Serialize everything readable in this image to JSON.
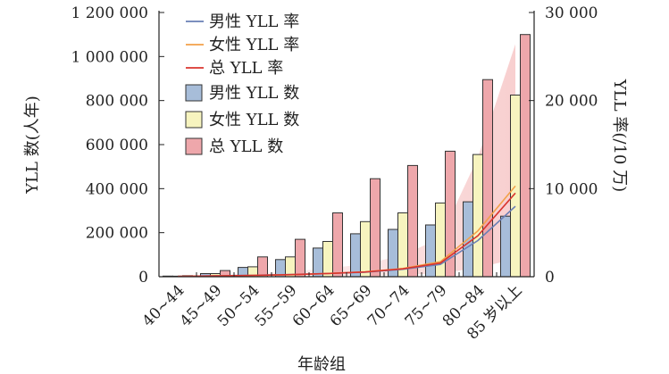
{
  "chart_data": {
    "type": "bar",
    "categories": [
      "40~44",
      "45~49",
      "50~54",
      "55~59",
      "60~64",
      "65~69",
      "70~74",
      "75~79",
      "80~84",
      "85 岁以上"
    ],
    "xlabel": "年龄组",
    "ylabel": "YLL 数(人年)",
    "y2label": "YLL 率(/10 万)",
    "ylim": [
      0,
      1200000
    ],
    "y2lim": [
      0,
      30000
    ],
    "yticks": [
      0,
      200000,
      400000,
      600000,
      800000,
      1000000,
      1200000
    ],
    "yticklabels": [
      "0",
      "200 000",
      "400 000",
      "600 000",
      "800 000",
      "1 000 000",
      "1 200 000"
    ],
    "y2ticks": [
      0,
      10000,
      20000,
      30000
    ],
    "y2ticklabels": [
      "0",
      "10 000",
      "20 000",
      "30 000"
    ],
    "bar_series": [
      {
        "name": "男性 YLL 数",
        "color": "#a7bdd9",
        "values": [
          3000,
          14000,
          42000,
          78000,
          130000,
          195000,
          215000,
          235000,
          340000,
          275000
        ]
      },
      {
        "name": "女性 YLL 数",
        "color": "#f7f4bf",
        "values": [
          2500,
          14000,
          45000,
          90000,
          160000,
          250000,
          290000,
          335000,
          555000,
          825000
        ]
      },
      {
        "name": "总 YLL 数",
        "color": "#eea7ab",
        "values": [
          5000,
          28000,
          90000,
          170000,
          290000,
          445000,
          505000,
          570000,
          895000,
          1100000
        ]
      }
    ],
    "line_series": [
      {
        "name": "男性 YLL 率",
        "color": "#6a7fb5",
        "values": [
          40,
          100,
          160,
          240,
          360,
          520,
          840,
          1400,
          4100,
          8000
        ]
      },
      {
        "name": "女性 YLL 率",
        "color": "#f2a14a",
        "values": [
          30,
          80,
          140,
          220,
          360,
          560,
          930,
          1700,
          5200,
          10300
        ]
      },
      {
        "name": "总 YLL 率",
        "color": "#d9342e",
        "values": [
          35,
          90,
          150,
          230,
          360,
          540,
          890,
          1550,
          4650,
          9500
        ]
      }
    ]
  }
}
